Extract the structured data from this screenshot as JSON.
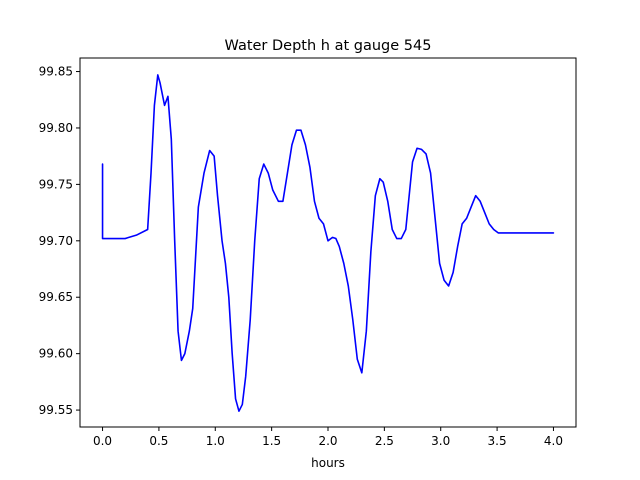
{
  "chart_data": {
    "type": "line",
    "title": "Water Depth h at gauge 545",
    "xlabel": "hours",
    "ylabel": "",
    "xlim": [
      -0.2,
      4.2
    ],
    "ylim": [
      99.535,
      99.862
    ],
    "xticks": [
      0.0,
      0.5,
      1.0,
      1.5,
      2.0,
      2.5,
      3.0,
      3.5,
      4.0
    ],
    "xtick_labels": [
      "0.0",
      "0.5",
      "1.0",
      "1.5",
      "2.0",
      "2.5",
      "3.0",
      "3.5",
      "4.0"
    ],
    "yticks": [
      99.55,
      99.6,
      99.65,
      99.7,
      99.75,
      99.8,
      99.85
    ],
    "ytick_labels": [
      "99.55",
      "99.60",
      "99.65",
      "99.70",
      "99.75",
      "99.80",
      "99.85"
    ],
    "grid": false,
    "legend": "none",
    "series": [
      {
        "color": "#0000ff",
        "x": [
          0.0,
          0.0,
          0.05,
          0.1,
          0.2,
          0.3,
          0.4,
          0.43,
          0.46,
          0.49,
          0.51,
          0.55,
          0.58,
          0.61,
          0.64,
          0.67,
          0.7,
          0.73,
          0.77,
          0.8,
          0.85,
          0.9,
          0.95,
          0.99,
          1.02,
          1.06,
          1.09,
          1.12,
          1.15,
          1.18,
          1.21,
          1.24,
          1.27,
          1.31,
          1.35,
          1.39,
          1.43,
          1.47,
          1.51,
          1.56,
          1.6,
          1.64,
          1.68,
          1.72,
          1.76,
          1.8,
          1.84,
          1.88,
          1.92,
          1.96,
          2.0,
          2.04,
          2.07,
          2.1,
          2.14,
          2.18,
          2.22,
          2.26,
          2.3,
          2.34,
          2.38,
          2.42,
          2.46,
          2.49,
          2.53,
          2.57,
          2.61,
          2.65,
          2.69,
          2.72,
          2.75,
          2.79,
          2.83,
          2.87,
          2.91,
          2.95,
          2.99,
          3.03,
          3.07,
          3.11,
          3.15,
          3.19,
          3.23,
          3.27,
          3.31,
          3.35,
          3.39,
          3.43,
          3.47,
          3.51,
          3.55,
          3.59,
          3.63,
          3.67,
          3.71,
          3.75,
          3.79,
          3.82,
          3.86,
          3.9,
          3.94,
          3.98,
          4.0
        ],
        "y": [
          99.768,
          99.702,
          99.702,
          99.702,
          99.702,
          99.705,
          99.71,
          99.76,
          99.82,
          99.847,
          99.84,
          99.82,
          99.828,
          99.79,
          99.7,
          99.62,
          99.594,
          99.6,
          99.62,
          99.64,
          99.73,
          99.76,
          99.78,
          99.775,
          99.74,
          99.7,
          99.68,
          99.65,
          99.6,
          99.56,
          99.549,
          99.555,
          99.58,
          99.63,
          99.7,
          99.755,
          99.768,
          99.76,
          99.745,
          99.735,
          99.735,
          99.76,
          99.785,
          99.798,
          99.798,
          99.785,
          99.765,
          99.735,
          99.72,
          99.715,
          99.7,
          99.703,
          99.702,
          99.695,
          99.68,
          99.66,
          99.63,
          99.595,
          99.583,
          99.62,
          99.69,
          99.74,
          99.755,
          99.752,
          99.735,
          99.71,
          99.702,
          99.702,
          99.71,
          99.74,
          99.77,
          99.782,
          99.781,
          99.777,
          99.76,
          99.72,
          99.68,
          99.665,
          99.66,
          99.672,
          99.695,
          99.715,
          99.72,
          99.73,
          99.74,
          99.735,
          99.725,
          99.715,
          99.71,
          99.707,
          99.707,
          99.707,
          99.707,
          99.707,
          99.707,
          99.707,
          99.707,
          99.707,
          99.707,
          99.707,
          99.707,
          99.707,
          99.707
        ]
      }
    ]
  }
}
